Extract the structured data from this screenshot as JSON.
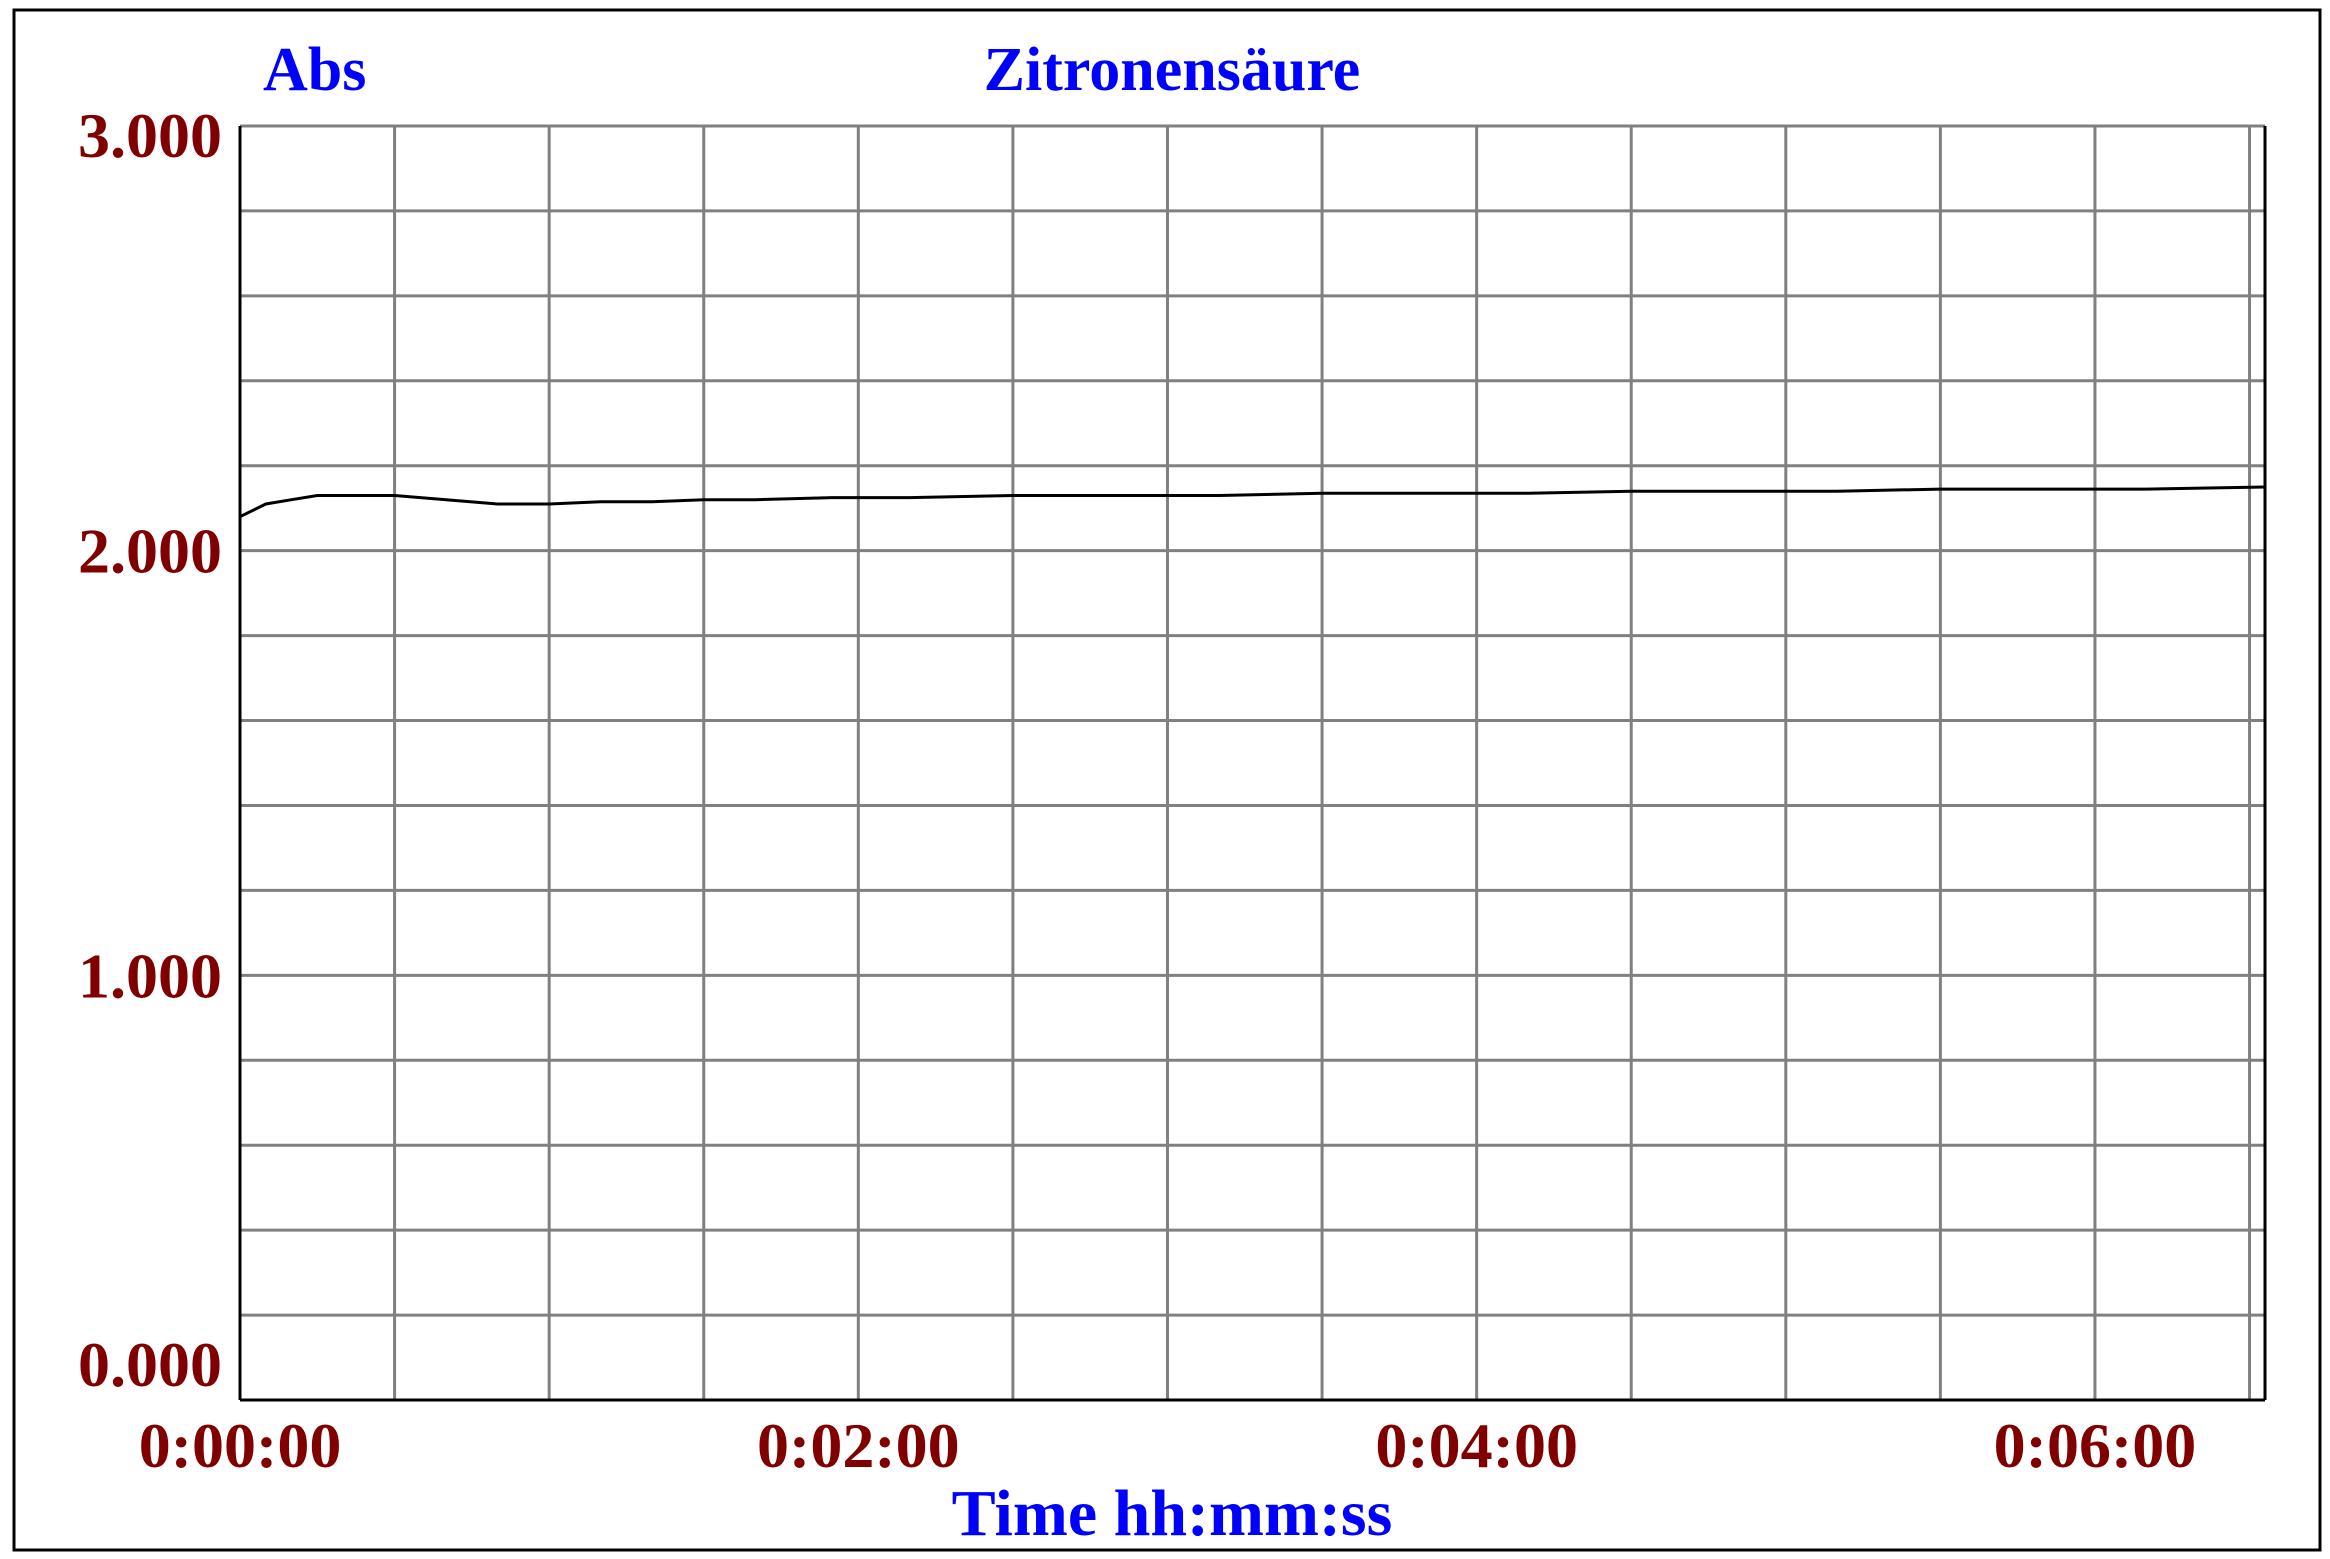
{
  "chart_data": {
    "type": "line",
    "title": "Zitronensäure",
    "ylabel": "Abs",
    "xlabel": "Time hh:mm:ss",
    "ylim": [
      0,
      3
    ],
    "xlim_seconds": [
      0,
      393
    ],
    "y_ticks": [
      "0.000",
      "1.000",
      "2.000",
      "3.000"
    ],
    "x_ticks": [
      "0:00:00",
      "0:02:00",
      "0:04:00",
      "0:06:00"
    ],
    "grid": true,
    "colors": {
      "title": "#0000ff",
      "tick_labels": "#800000",
      "grid": "#808080",
      "line": "#000000"
    },
    "series": [
      {
        "x_time": [
          "0:00:00",
          "0:00:05",
          "0:00:10",
          "0:00:15",
          "0:00:20",
          "0:00:30",
          "0:00:40",
          "0:00:50",
          "0:01:00",
          "0:01:10",
          "0:01:20",
          "0:01:30",
          "0:01:40",
          "0:01:55",
          "0:02:10",
          "0:02:30",
          "0:02:50",
          "0:03:10",
          "0:03:30",
          "0:03:50",
          "0:04:10",
          "0:04:30",
          "0:04:50",
          "0:05:10",
          "0:05:30",
          "0:05:50",
          "0:06:10",
          "0:06:33"
        ],
        "x": [
          0,
          5,
          10,
          15,
          20,
          30,
          40,
          50,
          60,
          70,
          80,
          90,
          100,
          115,
          130,
          150,
          170,
          190,
          210,
          230,
          250,
          270,
          290,
          310,
          330,
          350,
          370,
          393
        ],
        "y": [
          2.08,
          2.11,
          2.12,
          2.13,
          2.13,
          2.13,
          2.12,
          2.11,
          2.11,
          2.115,
          2.115,
          2.12,
          2.12,
          2.125,
          2.125,
          2.13,
          2.13,
          2.13,
          2.135,
          2.135,
          2.135,
          2.14,
          2.14,
          2.14,
          2.145,
          2.145,
          2.145,
          2.15
        ]
      }
    ]
  }
}
